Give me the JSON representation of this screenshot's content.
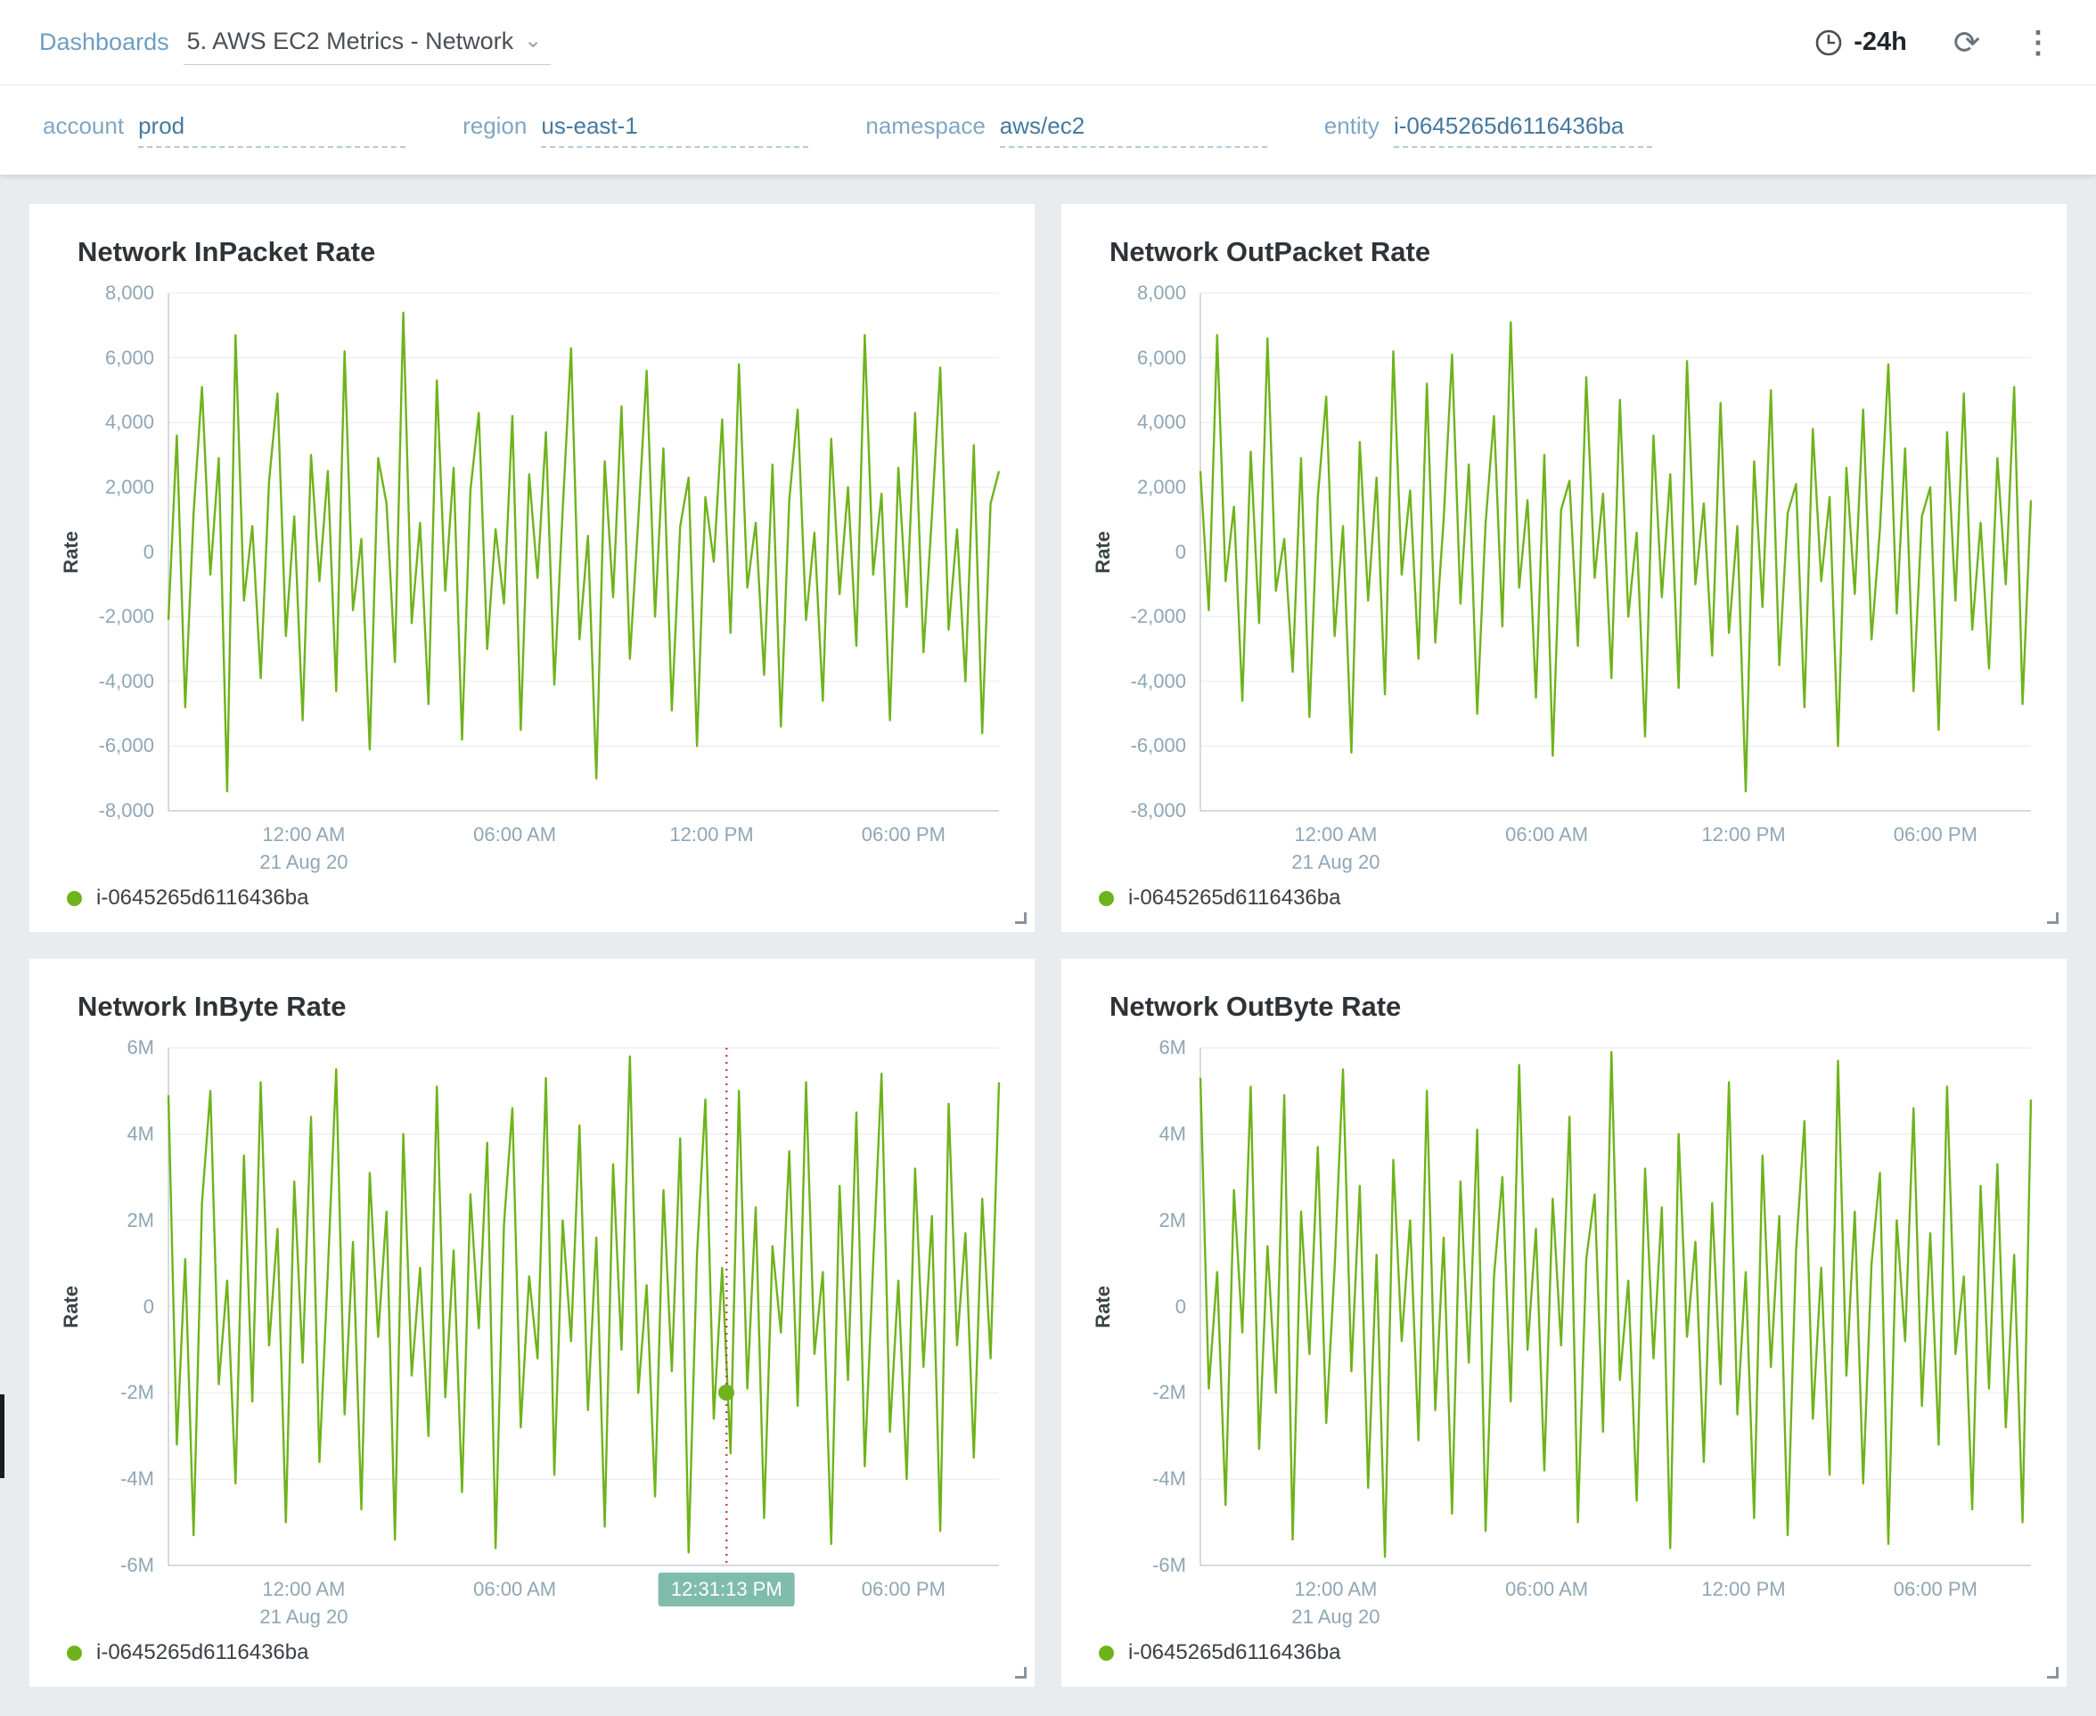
{
  "header": {
    "breadcrumb": "Dashboards",
    "title": "5. AWS EC2 Metrics - Network",
    "chevron_glyph": "⌄",
    "time_range": "-24h",
    "refresh_glyph": "⟳",
    "kebab_glyph": "⋮"
  },
  "filters": [
    {
      "label": "account",
      "value": "prod"
    },
    {
      "label": "region",
      "value": "us-east-1"
    },
    {
      "label": "namespace",
      "value": "aws/ec2"
    },
    {
      "label": "entity",
      "value": "i-0645265d6116436ba"
    }
  ],
  "colors": {
    "series": "#6fb31c",
    "crosshair_line": "#c0392b",
    "crosshair_chip": "#7fbcab",
    "accent_blue": "#5e93ba",
    "background": "#e9ecef"
  },
  "chart_data": [
    {
      "type": "line",
      "title": "Network InPacket Rate",
      "ylabel": "Rate",
      "legend": "i-0645265d6116436ba",
      "ylim": [
        -8000,
        8000
      ],
      "y_ticks": [
        {
          "label": "8,000",
          "value": 8000
        },
        {
          "label": "6,000",
          "value": 6000
        },
        {
          "label": "4,000",
          "value": 4000
        },
        {
          "label": "2,000",
          "value": 2000
        },
        {
          "label": "0",
          "value": 0
        },
        {
          "label": "-2,000",
          "value": -2000
        },
        {
          "label": "-4,000",
          "value": -4000
        },
        {
          "label": "-6,000",
          "value": -6000
        },
        {
          "label": "-8,000",
          "value": -8000
        }
      ],
      "x_ticks": [
        {
          "label": "12:00 AM",
          "sub": "21 Aug 20",
          "pos": 0.163
        },
        {
          "label": "06:00 AM",
          "pos": 0.417
        },
        {
          "label": "12:00 PM",
          "pos": 0.654
        },
        {
          "label": "06:00 PM",
          "pos": 0.885
        }
      ],
      "values": [
        -2100,
        3600,
        -4800,
        1200,
        5100,
        -700,
        2900,
        -7400,
        6700,
        -1500,
        800,
        -3900,
        2200,
        4900,
        -2600,
        1100,
        -5200,
        3000,
        -900,
        2500,
        -4300,
        6200,
        -1800,
        400,
        -6100,
        2900,
        1500,
        -3400,
        7400,
        -2200,
        900,
        -4700,
        5300,
        -1200,
        2600,
        -5800,
        1900,
        4300,
        -3000,
        700,
        -1600,
        4200,
        -5500,
        2400,
        -800,
        3700,
        -4100,
        1300,
        6300,
        -2700,
        500,
        -7000,
        2800,
        -1400,
        4500,
        -3300,
        1000,
        5600,
        -2000,
        3200,
        -4900,
        800,
        2300,
        -6000,
        1700,
        -300,
        4100,
        -2500,
        5800,
        -1100,
        900,
        -3800,
        2700,
        -5400,
        1600,
        4400,
        -2100,
        600,
        -4600,
        3500,
        -1300,
        2000,
        -2900,
        6700,
        -700,
        1800,
        -5200,
        2600,
        -1700,
        4300,
        -3100,
        1100,
        5700,
        -2400,
        700,
        -4000,
        3300,
        -5600,
        1500,
        2500
      ]
    },
    {
      "type": "line",
      "title": "Network OutPacket Rate",
      "ylabel": "Rate",
      "legend": "i-0645265d6116436ba",
      "ylim": [
        -8000,
        8000
      ],
      "y_ticks": [
        {
          "label": "8,000",
          "value": 8000
        },
        {
          "label": "6,000",
          "value": 6000
        },
        {
          "label": "4,000",
          "value": 4000
        },
        {
          "label": "2,000",
          "value": 2000
        },
        {
          "label": "0",
          "value": 0
        },
        {
          "label": "-2,000",
          "value": -2000
        },
        {
          "label": "-4,000",
          "value": -4000
        },
        {
          "label": "-6,000",
          "value": -6000
        },
        {
          "label": "-8,000",
          "value": -8000
        }
      ],
      "x_ticks": [
        {
          "label": "12:00 AM",
          "sub": "21 Aug 20",
          "pos": 0.163
        },
        {
          "label": "06:00 AM",
          "pos": 0.417
        },
        {
          "label": "12:00 PM",
          "pos": 0.654
        },
        {
          "label": "06:00 PM",
          "pos": 0.885
        }
      ],
      "values": [
        2500,
        -1800,
        6700,
        -900,
        1400,
        -4600,
        3100,
        -2200,
        6600,
        -1200,
        400,
        -3700,
        2900,
        -5100,
        1700,
        4800,
        -2600,
        800,
        -6200,
        3400,
        -1500,
        2300,
        -4400,
        6200,
        -700,
        1900,
        -3300,
        5200,
        -2800,
        1000,
        6100,
        -1600,
        2700,
        -5000,
        900,
        4200,
        -2300,
        7100,
        -1100,
        1600,
        -4500,
        3000,
        -6300,
        1300,
        2200,
        -2900,
        5400,
        -800,
        1800,
        -3900,
        4700,
        -2000,
        600,
        -5700,
        3600,
        -1400,
        2400,
        -4200,
        5900,
        -1000,
        1500,
        -3200,
        4600,
        -2500,
        800,
        -7400,
        2800,
        -1700,
        5000,
        -3500,
        1200,
        2100,
        -4800,
        3800,
        -900,
        1700,
        -6000,
        2600,
        -1300,
        4400,
        -2700,
        700,
        5800,
        -1900,
        3200,
        -4300,
        1100,
        2000,
        -5500,
        3700,
        -1500,
        4900,
        -2400,
        900,
        -3600,
        2900,
        -1000,
        5100,
        -4700,
        1600
      ]
    },
    {
      "type": "line",
      "title": "Network InByte Rate",
      "ylabel": "Rate",
      "legend": "i-0645265d6116436ba",
      "unit": "M",
      "ylim": [
        -6,
        6
      ],
      "y_ticks": [
        {
          "label": "6M",
          "value": 6
        },
        {
          "label": "4M",
          "value": 4
        },
        {
          "label": "2M",
          "value": 2
        },
        {
          "label": "0",
          "value": 0
        },
        {
          "label": "-2M",
          "value": -2
        },
        {
          "label": "-4M",
          "value": -4
        },
        {
          "label": "-6M",
          "value": -6
        }
      ],
      "x_ticks": [
        {
          "label": "12:00 AM",
          "sub": "21 Aug 20",
          "pos": 0.163
        },
        {
          "label": "06:00 AM",
          "pos": 0.417
        },
        {
          "label": "12:00 PM",
          "pos": 0.654
        },
        {
          "label": "06:00 PM",
          "pos": 0.885
        }
      ],
      "crosshair": {
        "pos": 0.672,
        "time_label": "12:31:13 PM",
        "dot_value": -2.0
      },
      "values": [
        4.9,
        -3.2,
        1.1,
        -5.3,
        2.4,
        5.0,
        -1.8,
        0.6,
        -4.1,
        3.5,
        -2.2,
        5.2,
        -0.9,
        1.8,
        -5.0,
        2.9,
        -1.3,
        4.4,
        -3.6,
        0.8,
        5.5,
        -2.5,
        1.5,
        -4.7,
        3.1,
        -0.7,
        2.2,
        -5.4,
        4.0,
        -1.6,
        0.9,
        -3.0,
        5.1,
        -2.1,
        1.3,
        -4.3,
        2.6,
        -0.5,
        3.8,
        -5.6,
        1.9,
        4.6,
        -2.8,
        0.7,
        -1.2,
        5.3,
        -3.9,
        2.0,
        -0.8,
        4.2,
        -2.4,
        1.6,
        -5.1,
        3.3,
        -1.0,
        5.8,
        -2.0,
        0.5,
        -4.4,
        2.7,
        -1.5,
        3.9,
        -5.7,
        1.2,
        4.8,
        -2.6,
        0.9,
        -3.4,
        5.0,
        -1.9,
        2.3,
        -4.9,
        1.4,
        -0.6,
        3.6,
        -2.3,
        5.2,
        -1.1,
        0.8,
        -5.5,
        2.8,
        -1.7,
        4.5,
        -3.7,
        1.0,
        5.4,
        -2.9,
        0.6,
        -4.0,
        3.2,
        -1.4,
        2.1,
        -5.2,
        4.7,
        -0.9,
        1.7,
        -3.5,
        2.5,
        -1.2,
        5.2
      ]
    },
    {
      "type": "line",
      "title": "Network OutByte Rate",
      "ylabel": "Rate",
      "legend": "i-0645265d6116436ba",
      "unit": "M",
      "ylim": [
        -6,
        6
      ],
      "y_ticks": [
        {
          "label": "6M",
          "value": 6
        },
        {
          "label": "4M",
          "value": 4
        },
        {
          "label": "2M",
          "value": 2
        },
        {
          "label": "0",
          "value": 0
        },
        {
          "label": "-2M",
          "value": -2
        },
        {
          "label": "-4M",
          "value": -4
        },
        {
          "label": "-6M",
          "value": -6
        }
      ],
      "x_ticks": [
        {
          "label": "12:00 AM",
          "sub": "21 Aug 20",
          "pos": 0.163
        },
        {
          "label": "06:00 AM",
          "pos": 0.417
        },
        {
          "label": "12:00 PM",
          "pos": 0.654
        },
        {
          "label": "06:00 PM",
          "pos": 0.885
        }
      ],
      "values": [
        5.3,
        -1.9,
        0.8,
        -4.6,
        2.7,
        -0.6,
        5.1,
        -3.3,
        1.4,
        -2.0,
        4.9,
        -5.4,
        2.2,
        -1.1,
        3.7,
        -2.7,
        0.9,
        5.5,
        -1.5,
        2.8,
        -4.2,
        1.2,
        -5.8,
        3.4,
        -0.8,
        2.0,
        -3.1,
        5.0,
        -2.4,
        1.6,
        -4.8,
        2.9,
        -1.3,
        4.1,
        -5.2,
        0.7,
        3.0,
        -2.2,
        5.6,
        -1.0,
        1.8,
        -3.8,
        2.5,
        -0.9,
        4.4,
        -5.0,
        1.1,
        2.6,
        -2.9,
        5.9,
        -1.7,
        0.6,
        -4.5,
        3.2,
        -1.2,
        2.3,
        -5.6,
        4.0,
        -0.7,
        1.5,
        -3.6,
        2.4,
        -1.8,
        5.2,
        -2.5,
        0.8,
        -4.9,
        3.5,
        -1.4,
        2.1,
        -5.3,
        1.3,
        4.3,
        -2.6,
        0.9,
        -3.9,
        5.7,
        -1.6,
        2.2,
        -4.1,
        1.0,
        3.1,
        -5.5,
        2.0,
        -0.8,
        4.6,
        -2.3,
        1.7,
        -3.2,
        5.1,
        -1.1,
        0.7,
        -4.7,
        2.8,
        -1.9,
        3.3,
        -2.8,
        1.2,
        -5.0,
        4.8
      ]
    }
  ]
}
